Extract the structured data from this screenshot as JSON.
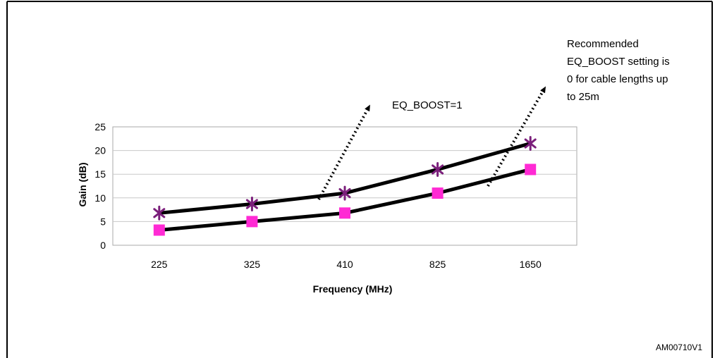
{
  "figure": {
    "code": "AM00710V1"
  },
  "chart_data": {
    "type": "line",
    "categories": [
      "225",
      "325",
      "410",
      "825",
      "1650"
    ],
    "series": [
      {
        "marker": "asterisk",
        "color": "#7b1f7b",
        "values": [
          6.8,
          8.7,
          11,
          16,
          21.5
        ]
      },
      {
        "marker": "square",
        "color": "#ff2ad4",
        "values": [
          3.2,
          5,
          6.8,
          11,
          16
        ]
      }
    ],
    "xlabel": "Frequency (MHz)",
    "ylabel": "Gain (dB)",
    "ylim": [
      0,
      25
    ],
    "yticks": [
      0,
      5,
      10,
      15,
      20,
      25
    ],
    "grid": true,
    "line_color": "#000000",
    "annotations": [
      {
        "id": "boost1",
        "lines": [
          "EQ_BOOST=1"
        ]
      },
      {
        "id": "boost0",
        "lines": [
          "Recommended",
          "EQ_BOOST setting is",
          "0 for cable lengths up",
          "to 25m"
        ]
      }
    ]
  }
}
